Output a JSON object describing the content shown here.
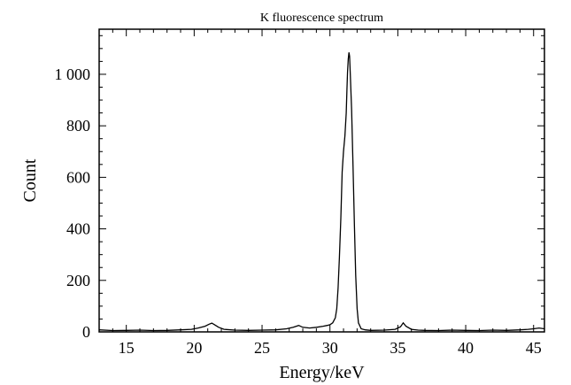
{
  "chart_data": {
    "type": "line",
    "title": "K fluorescence spectrum",
    "xlabel": "Energy/keV",
    "ylabel": "Count",
    "xlim": [
      13,
      45.8
    ],
    "ylim": [
      0,
      1175
    ],
    "x_ticks": [
      15,
      20,
      25,
      30,
      35,
      40,
      45
    ],
    "x_tick_labels": [
      "15",
      "20",
      "25",
      "30",
      "35",
      "40",
      "45"
    ],
    "y_ticks": [
      0,
      200,
      400,
      600,
      800,
      1000
    ],
    "y_tick_labels": [
      "0",
      "200",
      "400",
      "600",
      "800",
      "1 000"
    ],
    "grid": false,
    "line_color": "#000000",
    "series": [
      {
        "x": [
          13.0,
          14.0,
          15.0,
          16.0,
          17.0,
          18.0,
          19.0,
          19.8,
          20.3,
          20.8,
          21.1,
          21.3,
          21.5,
          21.8,
          22.2,
          23.0,
          24.0,
          25.0,
          26.0,
          26.8,
          27.3,
          27.7,
          28.0,
          28.5,
          29.0,
          29.5,
          29.8,
          30.0,
          30.2,
          30.4,
          30.5,
          30.6,
          30.7,
          30.8,
          30.9,
          31.0,
          31.1,
          31.2,
          31.25,
          31.3,
          31.35,
          31.4,
          31.45,
          31.5,
          31.6,
          31.7,
          31.8,
          31.9,
          32.0,
          32.1,
          32.3,
          32.6,
          33.0,
          34.0,
          34.8,
          35.2,
          35.4,
          35.6,
          36.0,
          36.5,
          37.0,
          38.0,
          39.0,
          40.0,
          41.0,
          42.0,
          43.0,
          44.0,
          44.6,
          45.0,
          45.4,
          45.8
        ],
        "y": [
          8,
          5,
          6,
          7,
          5,
          6,
          8,
          10,
          15,
          22,
          30,
          34,
          28,
          18,
          10,
          7,
          6,
          7,
          8,
          12,
          18,
          25,
          18,
          15,
          18,
          22,
          25,
          28,
          35,
          55,
          90,
          170,
          290,
          440,
          620,
          700,
          760,
          850,
          940,
          1010,
          1060,
          1085,
          1070,
          1000,
          860,
          640,
          420,
          220,
          90,
          35,
          12,
          8,
          6,
          7,
          10,
          20,
          35,
          22,
          10,
          7,
          6,
          5,
          7,
          6,
          5,
          7,
          6,
          8,
          10,
          12,
          15,
          12
        ]
      }
    ]
  }
}
